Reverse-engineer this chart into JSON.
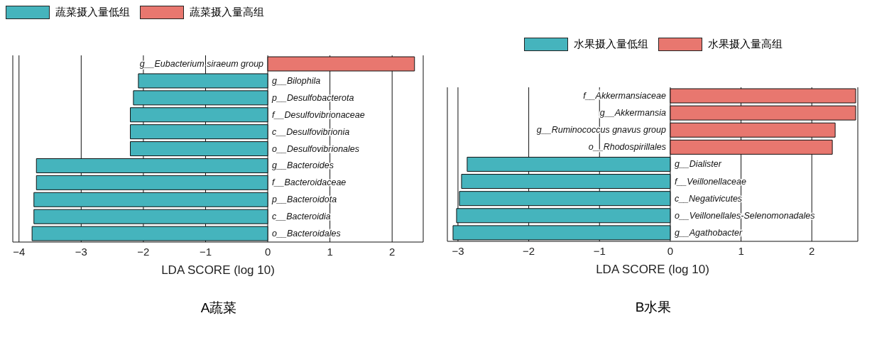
{
  "chart_data": [
    {
      "type": "bar",
      "orientation": "horizontal",
      "title": "A蔬菜",
      "xlabel": "LDA SCORE (log 10)",
      "legend": "top left",
      "grid": "x",
      "xlim": [
        -4.1,
        2.5
      ],
      "xticks": [
        -4,
        -3,
        -2,
        -1,
        0,
        1,
        2
      ],
      "categories": [
        "g__Eubacterium siraeum group",
        "g__Bilophila",
        "p__Desulfobacterota",
        "f__Desulfovibrionaceae",
        "c__Desulfovibrionia",
        "o__Desulfovibrionales",
        "g__Bacteroides",
        "f__Bacteroidaceae",
        "p__Bacteroidota",
        "c__Bacteroidia",
        "o__Bacteroidales"
      ],
      "series": [
        {
          "name": "蔬菜摄入量低组",
          "color": "#45b4bd",
          "values": [
            null,
            -2.08,
            -2.16,
            -2.21,
            -2.21,
            -2.21,
            -3.72,
            -3.72,
            -3.76,
            -3.76,
            -3.79
          ]
        },
        {
          "name": "蔬菜摄入量高组",
          "color": "#e8776f",
          "values": [
            2.36,
            null,
            null,
            null,
            null,
            null,
            null,
            null,
            null,
            null,
            null
          ]
        }
      ]
    },
    {
      "type": "bar",
      "orientation": "horizontal",
      "title": "B水果",
      "xlabel": "LDA SCORE (log 10)",
      "legend": "top",
      "grid": "x",
      "xlim": [
        -3.15,
        2.65
      ],
      "xticks": [
        -3,
        -2,
        -1,
        0,
        1,
        2
      ],
      "categories": [
        "f__Akkermansiaceae",
        "g__Akkermansia",
        "g__Ruminococcus gnavus group",
        "o__Rhodospirillales",
        "g__Dialister",
        "f__Veillonellaceae",
        "c__Negativicutes",
        "o__Veillonellales-Selenomonadales",
        "g__Agathobacter"
      ],
      "series": [
        {
          "name": "水果摄入量低组",
          "color": "#45b4bd",
          "values": [
            null,
            null,
            null,
            null,
            -2.87,
            -2.95,
            -2.98,
            -3.02,
            -3.07
          ]
        },
        {
          "name": "水果摄入量高组",
          "color": "#e8776f",
          "values": [
            2.62,
            2.62,
            2.33,
            2.29,
            null,
            null,
            null,
            null,
            null
          ]
        }
      ]
    }
  ]
}
